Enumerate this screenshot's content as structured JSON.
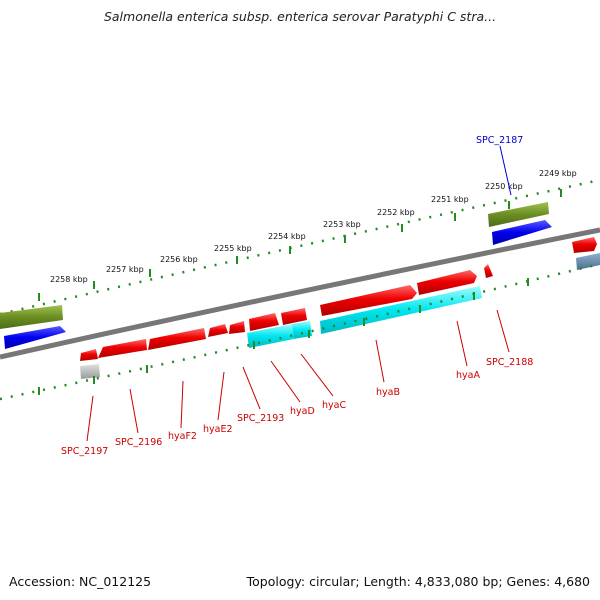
{
  "title": "Salmonella enterica subsp. enterica serovar Paratyphi C stra...",
  "footer": {
    "accession": "Accession: NC_012125",
    "topology": "Topology: circular; Length: 4,833,080 bp; Genes: 4,680"
  },
  "colors": {
    "forward_gene": "#ee0000",
    "reverse_gene": "#ee0000",
    "cds_track": "#00e6f0",
    "green_track": "#6b8e23",
    "blue_track": "#0000ee",
    "tick": "#228b22",
    "backbone": "#777777",
    "label_red": "#cc0000",
    "label_blue": "#0000cc"
  },
  "kbp_labels": [
    "2249 kbp",
    "2250 kbp",
    "2251 kbp",
    "2252 kbp",
    "2253 kbp",
    "2254 kbp",
    "2255 kbp",
    "2256 kbp",
    "2257 kbp",
    "2258 kbp"
  ],
  "gene_labels": [
    "SPC_2187",
    "SPC_2188",
    "hyaA",
    "hyaB",
    "hyaC",
    "hyaD",
    "SPC_2193",
    "hyaE2",
    "hyaF2",
    "SPC_2196",
    "SPC_2197"
  ]
}
